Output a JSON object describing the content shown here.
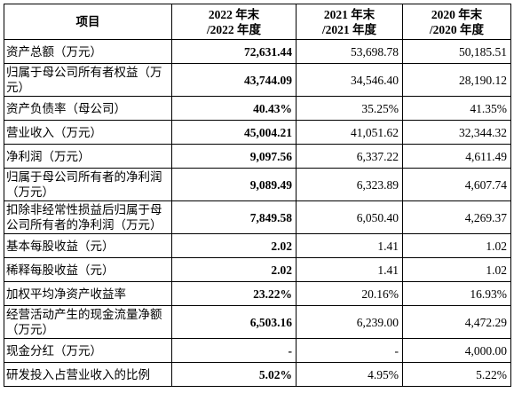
{
  "table": {
    "header": [
      [
        "项目"
      ],
      [
        "2022 年末",
        "/2022 年度"
      ],
      [
        "2021 年末",
        "/2021 年度"
      ],
      [
        "2020 年末",
        "/2020 年度"
      ]
    ],
    "rows": [
      [
        "资产总额（万元）",
        "72,631.44",
        "53,698.78",
        "50,185.51"
      ],
      [
        "归属于母公司所有者权益（万元）",
        "43,744.09",
        "34,546.40",
        "28,190.12"
      ],
      [
        "资产负债率（母公司）",
        "40.43%",
        "35.25%",
        "41.35%"
      ],
      [
        "营业收入（万元）",
        "45,004.21",
        "41,051.62",
        "32,344.32"
      ],
      [
        "净利润（万元）",
        "9,097.56",
        "6,337.22",
        "4,611.49"
      ],
      [
        "归属于母公司所有者的净利润（万元）",
        "9,089.49",
        "6,323.89",
        "4,607.74"
      ],
      [
        "扣除非经常性损益后归属于母公司所有者的净利润（万元）",
        "7,849.58",
        "6,050.40",
        "4,269.37"
      ],
      [
        "基本每股收益（元）",
        "2.02",
        "1.41",
        "1.02"
      ],
      [
        "稀释每股收益（元）",
        "2.02",
        "1.41",
        "1.02"
      ],
      [
        "加权平均净资产收益率",
        "23.22%",
        "20.16%",
        "16.93%"
      ],
      [
        "经营活动产生的现金流量净额（万元）",
        "6,503.16",
        "6,239.00",
        "4,472.29"
      ],
      [
        "现金分红（万元）",
        "-",
        "-",
        "4,000.00"
      ],
      [
        "研发投入占营业收入的比例",
        "5.02%",
        "4.95%",
        "5.22%"
      ]
    ]
  }
}
